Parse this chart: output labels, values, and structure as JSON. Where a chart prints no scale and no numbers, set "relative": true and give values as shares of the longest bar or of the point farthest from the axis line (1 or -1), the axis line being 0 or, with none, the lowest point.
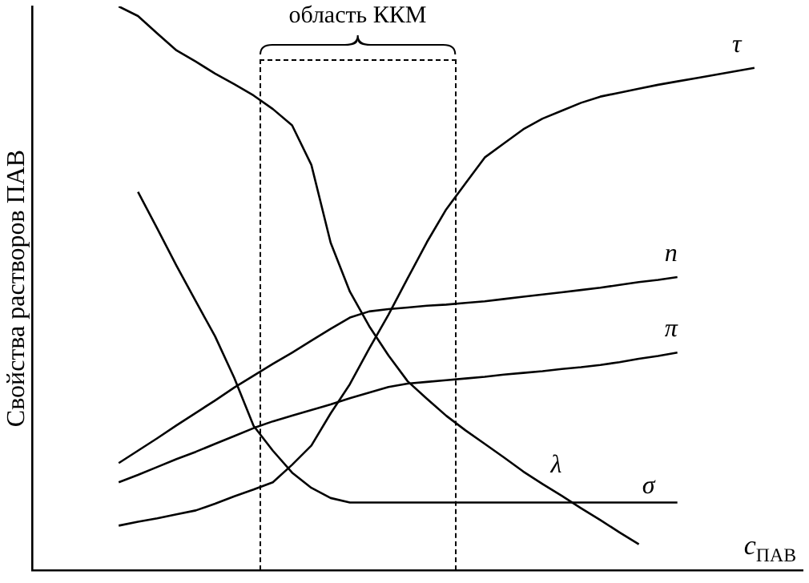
{
  "chart_data": {
    "type": "line",
    "relative": true,
    "xlabel": "c$_{ПАВ}$",
    "ylabel": "Свойства растворов ПАВ",
    "legend": false,
    "grid": false,
    "marker": "none",
    "annotations": [
      "область ККМ"
    ],
    "categories": [
      null,
      null,
      null,
      null,
      null,
      null,
      null,
      null,
      null,
      null,
      null,
      null,
      null,
      null,
      null,
      null,
      null,
      null,
      null,
      null,
      null,
      null,
      null,
      null,
      null,
      null,
      null,
      null,
      null,
      null,
      null,
      null,
      null,
      null,
      null,
      null,
      null,
      null,
      null,
      null
    ],
    "series": [
      {
        "name": "τ",
        "color": "#000000",
        "values": [
          null,
          null,
          null,
          null,
          0.079,
          0.086,
          0.092,
          0.099,
          0.106,
          0.118,
          0.131,
          0.143,
          0.156,
          0.187,
          0.221,
          0.278,
          0.33,
          0.393,
          0.453,
          0.518,
          0.582,
          0.64,
          0.686,
          0.732,
          0.757,
          0.782,
          0.801,
          0.815,
          0.829,
          0.84,
          0.847,
          0.854,
          0.861,
          0.867,
          0.873,
          0.879,
          0.885,
          0.891,
          null,
          null
        ]
      },
      {
        "name": "n",
        "color": "#000000",
        "values": [
          null,
          null,
          null,
          null,
          0.19,
          0.212,
          0.234,
          0.257,
          0.279,
          0.301,
          0.324,
          0.345,
          0.366,
          0.386,
          0.407,
          0.428,
          0.448,
          0.459,
          0.463,
          0.466,
          0.469,
          0.471,
          0.474,
          0.477,
          0.481,
          0.485,
          0.489,
          0.493,
          0.497,
          0.501,
          0.506,
          0.511,
          0.515,
          0.52,
          null,
          null,
          null,
          null,
          null,
          null
        ]
      },
      {
        "name": "π",
        "color": "#000000",
        "values": [
          null,
          null,
          null,
          null,
          0.156,
          0.169,
          0.183,
          0.197,
          0.21,
          0.224,
          0.238,
          0.252,
          0.264,
          0.274,
          0.284,
          0.294,
          0.305,
          0.315,
          0.325,
          0.331,
          0.334,
          0.337,
          0.34,
          0.343,
          0.347,
          0.35,
          0.353,
          0.357,
          0.36,
          0.364,
          0.369,
          0.375,
          0.38,
          0.386,
          null,
          null,
          null,
          null,
          null,
          null
        ]
      },
      {
        "name": "λ",
        "color": "#000000",
        "values": [
          null,
          null,
          null,
          null,
          1,
          0.983,
          0.952,
          0.922,
          0.902,
          0.881,
          0.862,
          0.842,
          0.818,
          0.789,
          0.719,
          0.581,
          0.494,
          0.433,
          0.381,
          0.335,
          0.304,
          0.274,
          0.248,
          0.224,
          0.2,
          0.175,
          0.153,
          0.132,
          0.11,
          0.089,
          0.067,
          0.046,
          null,
          null,
          null,
          null,
          null,
          null,
          null,
          null
        ]
      },
      {
        "name": "σ",
        "color": "#000000",
        "values": [
          null,
          null,
          null,
          null,
          null,
          0.671,
          0.606,
          0.54,
          0.477,
          0.415,
          0.341,
          0.256,
          0.212,
          0.173,
          0.146,
          0.128,
          0.12,
          0.12,
          0.12,
          0.12,
          0.12,
          0.12,
          0.12,
          0.12,
          0.12,
          0.12,
          0.12,
          0.12,
          0.12,
          0.12,
          0.12,
          0.12,
          0.12,
          0.12,
          null,
          null,
          null,
          null,
          null,
          null
        ]
      }
    ]
  }
}
